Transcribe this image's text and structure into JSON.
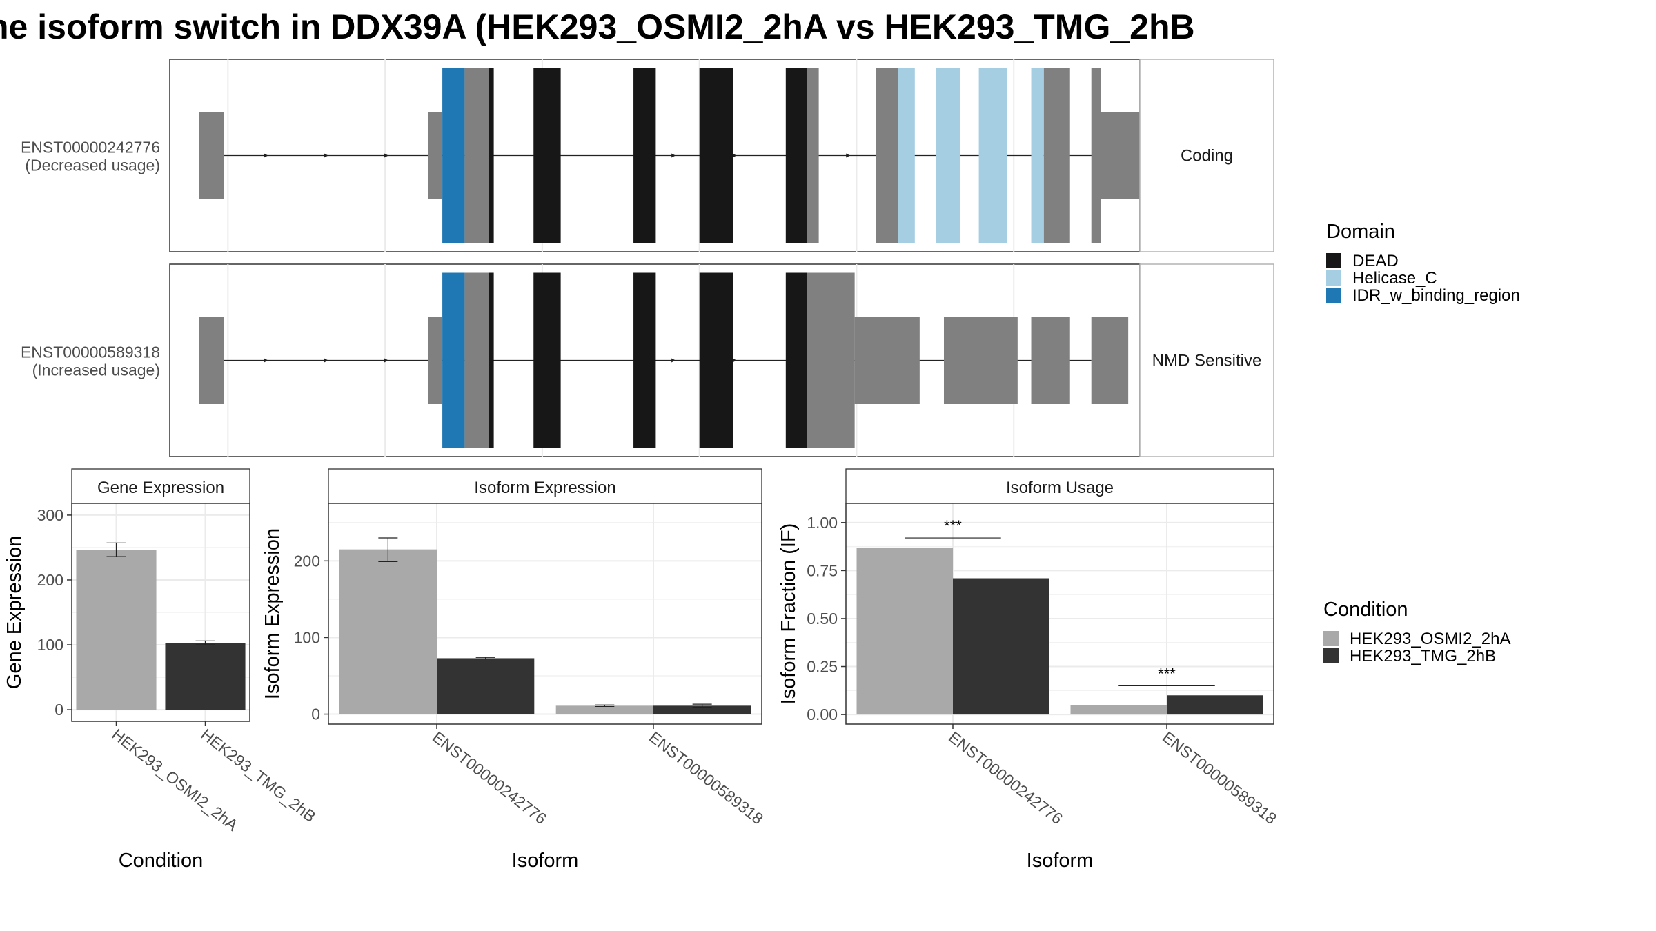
{
  "title": "he isoform switch in DDX39A (HEK293_OSMI2_2hA vs HEK293_TMG_2hB",
  "colors": {
    "utr": "#808080",
    "DEAD": "#171717",
    "Helicase_C": "#A6CEE3",
    "IDR_w_binding_region": "#1F78B4",
    "cond1": "#A9A9A9",
    "cond2": "#333333"
  },
  "structure": {
    "tracks": [
      {
        "label_line1": "ENST00000242776",
        "label_line2": "(Decreased usage)",
        "strip": "Coding",
        "exons": [
          {
            "start": 30,
            "end": 56,
            "type": "utr"
          },
          {
            "start": 266,
            "end": 281,
            "type": "utr"
          },
          {
            "start": 281,
            "end": 304,
            "type": "IDR_w_binding_region"
          },
          {
            "start": 304,
            "end": 329,
            "type": "utr"
          },
          {
            "start": 329,
            "end": 334,
            "type": "DEAD"
          },
          {
            "start": 375,
            "end": 403,
            "type": "DEAD"
          },
          {
            "start": 478,
            "end": 501,
            "type": "DEAD"
          },
          {
            "start": 546,
            "end": 581,
            "type": "DEAD"
          },
          {
            "start": 635,
            "end": 657,
            "type": "DEAD"
          },
          {
            "start": 657,
            "end": 669,
            "type": "utr"
          },
          {
            "start": 728,
            "end": 751,
            "type": "utr"
          },
          {
            "start": 751,
            "end": 768,
            "type": "Helicase_C"
          },
          {
            "start": 790,
            "end": 815,
            "type": "Helicase_C"
          },
          {
            "start": 834,
            "end": 863,
            "type": "Helicase_C"
          },
          {
            "start": 888,
            "end": 901,
            "type": "Helicase_C"
          },
          {
            "start": 901,
            "end": 928,
            "type": "utr"
          },
          {
            "start": 950,
            "end": 960,
            "type": "utr"
          },
          {
            "start": 960,
            "end": 1000,
            "type": "utr"
          }
        ]
      },
      {
        "label_line1": "ENST00000589318",
        "label_line2": "(Increased usage)",
        "strip": "NMD Sensitive",
        "exons": [
          {
            "start": 30,
            "end": 56,
            "type": "utr"
          },
          {
            "start": 266,
            "end": 281,
            "type": "utr"
          },
          {
            "start": 281,
            "end": 304,
            "type": "IDR_w_binding_region"
          },
          {
            "start": 304,
            "end": 329,
            "type": "utr"
          },
          {
            "start": 329,
            "end": 334,
            "type": "DEAD"
          },
          {
            "start": 375,
            "end": 403,
            "type": "DEAD"
          },
          {
            "start": 478,
            "end": 501,
            "type": "DEAD"
          },
          {
            "start": 546,
            "end": 581,
            "type": "DEAD"
          },
          {
            "start": 635,
            "end": 657,
            "type": "DEAD"
          },
          {
            "start": 657,
            "end": 706,
            "type": "utr"
          },
          {
            "start": 706,
            "end": 773,
            "type": "utr"
          },
          {
            "start": 798,
            "end": 874,
            "type": "utr"
          },
          {
            "start": 888,
            "end": 928,
            "type": "utr"
          },
          {
            "start": 950,
            "end": 988,
            "type": "utr"
          }
        ]
      }
    ]
  },
  "domain_legend": {
    "title": "Domain",
    "items": [
      {
        "label": "DEAD",
        "key": "DEAD"
      },
      {
        "label": "Helicase_C",
        "key": "Helicase_C"
      },
      {
        "label": "IDR_w_binding_region",
        "key": "IDR_w_binding_region"
      }
    ]
  },
  "condition_legend": {
    "title": "Condition",
    "items": [
      {
        "label": "HEK293_OSMI2_2hA",
        "key": "cond1"
      },
      {
        "label": "HEK293_TMG_2hB",
        "key": "cond2"
      }
    ]
  },
  "chart_data": [
    {
      "type": "bar",
      "title": "Gene Expression",
      "xlabel": "Condition",
      "ylabel": "Gene Expression",
      "categories": [
        "HEK293_OSMI2_2hA",
        "HEK293_TMG_2hB"
      ],
      "values": [
        246,
        103
      ],
      "errors": [
        [
          236,
          257
        ],
        [
          100,
          106
        ]
      ],
      "ylim": [
        -18,
        318
      ],
      "yticks": [
        0,
        100,
        200,
        300
      ],
      "grid": true
    },
    {
      "type": "bar",
      "title": "Isoform Expression",
      "xlabel": "Isoform",
      "ylabel": "Isoform Expression",
      "categories": [
        "ENST00000242776",
        "ENST00000589318"
      ],
      "series": [
        {
          "name": "HEK293_OSMI2_2hA",
          "values": [
            215,
            11
          ],
          "errors": [
            [
              199,
              230
            ],
            [
              10,
              12
            ]
          ]
        },
        {
          "name": "HEK293_TMG_2hB",
          "values": [
            73,
            11
          ],
          "errors": [
            [
              72,
              74
            ],
            [
              9,
              13
            ]
          ]
        }
      ],
      "ylim": [
        -13,
        275
      ],
      "yticks": [
        0,
        100,
        200
      ],
      "grid": true
    },
    {
      "type": "bar",
      "title": "Isoform Usage",
      "xlabel": "Isoform",
      "ylabel": "Isoform Fraction (IF)",
      "categories": [
        "ENST00000242776",
        "ENST00000589318"
      ],
      "series": [
        {
          "name": "HEK293_OSMI2_2hA",
          "values": [
            0.87,
            0.05
          ]
        },
        {
          "name": "HEK293_TMG_2hB",
          "values": [
            0.71,
            0.1
          ]
        }
      ],
      "significance": [
        {
          "label": "***",
          "y": 0.92
        },
        {
          "label": "***",
          "y": 0.15
        }
      ],
      "ylim": [
        -0.05,
        1.1
      ],
      "yticks": [
        0,
        0.25,
        0.5,
        0.75,
        1.0
      ],
      "yticklabels": [
        "0.00",
        "0.25",
        "0.50",
        "0.75",
        "1.00"
      ],
      "grid": true
    }
  ]
}
